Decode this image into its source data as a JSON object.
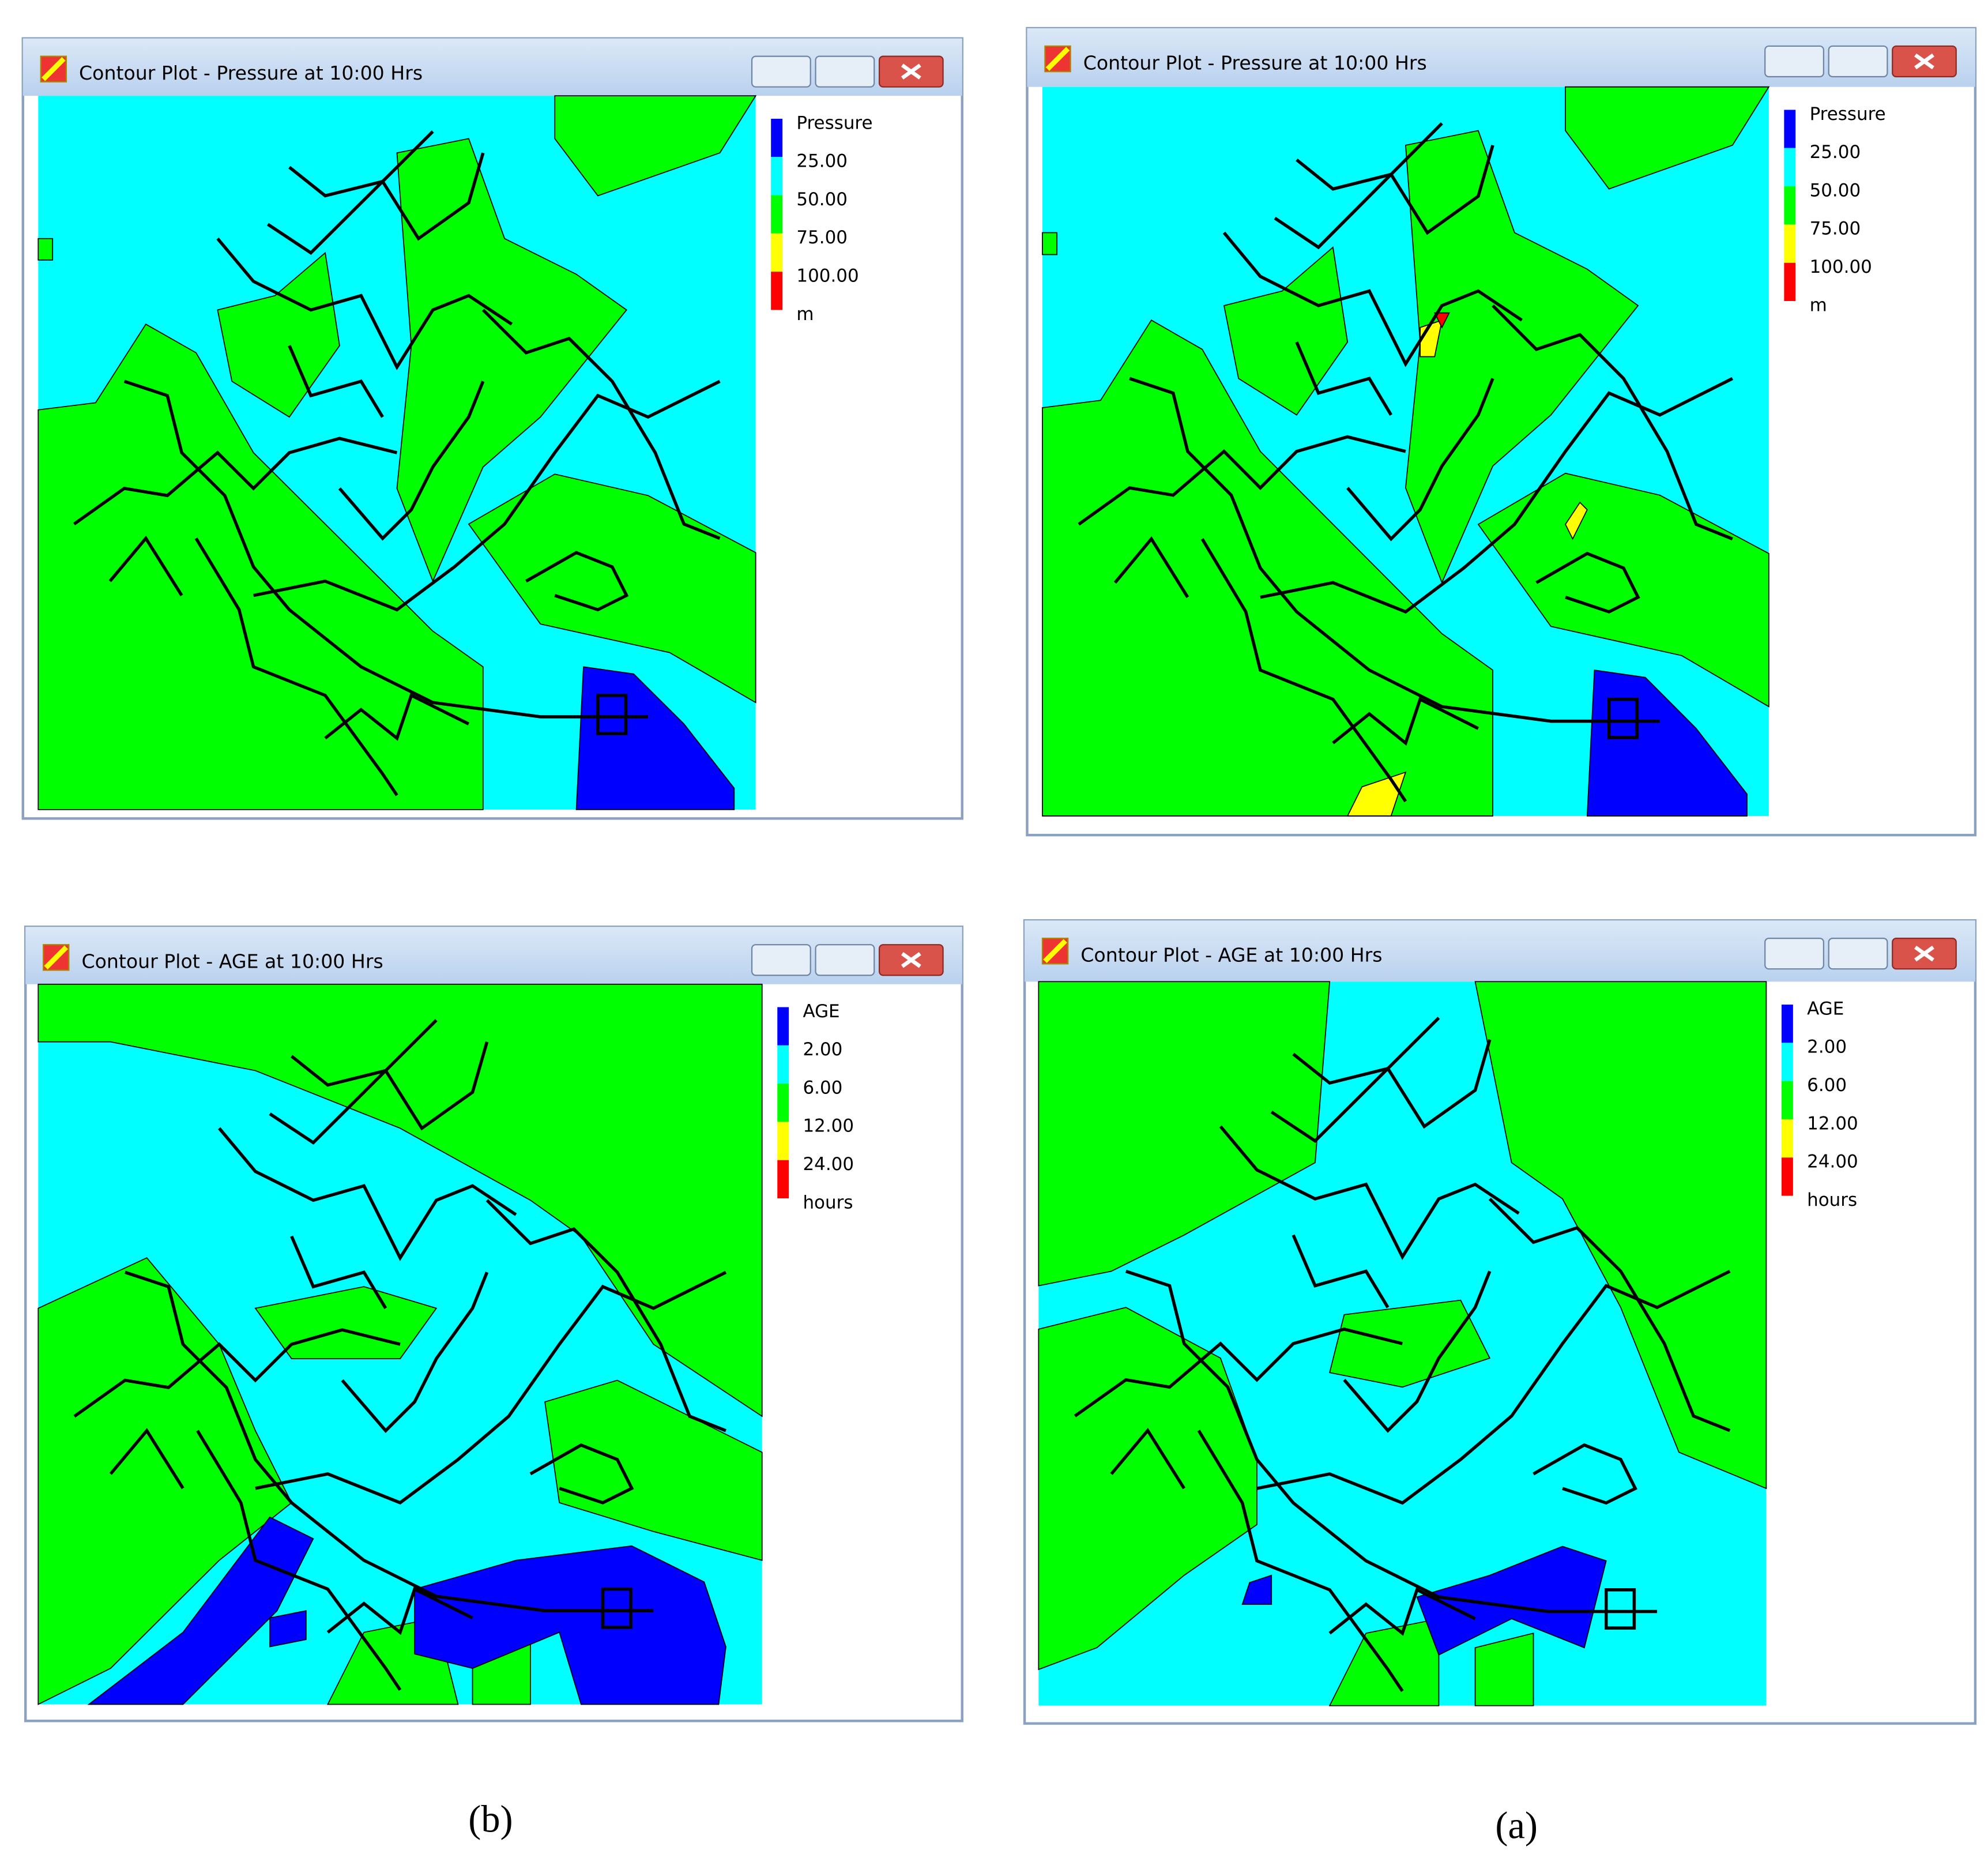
{
  "windows": [
    {
      "title": "Contour Plot - Pressure at 10:00 Hrs",
      "legend": {
        "title": "Pressure",
        "labels": [
          "25.00",
          "50.00",
          "75.00",
          "100.00"
        ],
        "unit": "m"
      }
    },
    {
      "title": "Contour Plot - Pressure at 10:00 Hrs",
      "legend": {
        "title": "Pressure",
        "labels": [
          "25.00",
          "50.00",
          "75.00",
          "100.00"
        ],
        "unit": "m"
      }
    },
    {
      "title": "Contour Plot - AGE at 10:00 Hrs",
      "legend": {
        "title": "AGE",
        "labels": [
          "2.00",
          "6.00",
          "12.00",
          "24.00"
        ],
        "unit": "hours"
      }
    },
    {
      "title": "Contour Plot - AGE at 10:00 Hrs",
      "legend": {
        "title": "AGE",
        "labels": [
          "2.00",
          "6.00",
          "12.00",
          "24.00"
        ],
        "unit": "hours"
      }
    }
  ],
  "captions": [
    "(b)",
    "(a)"
  ]
}
